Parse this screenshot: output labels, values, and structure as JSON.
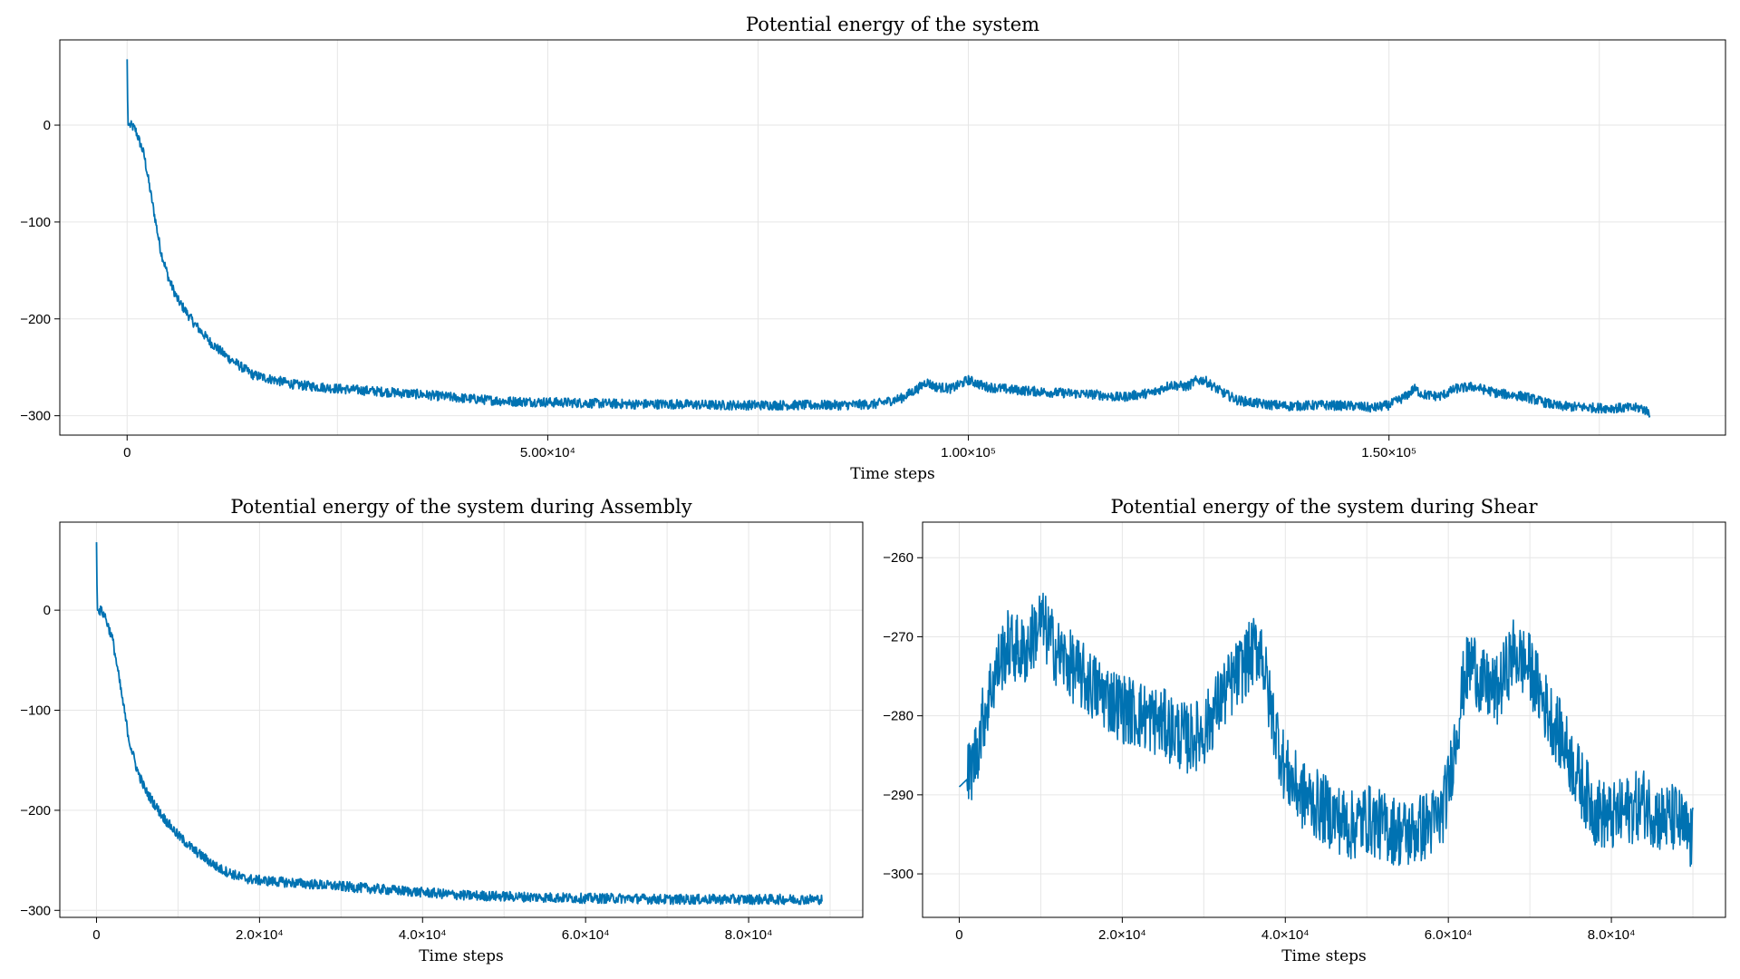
{
  "colors": {
    "series": "#0072b2",
    "grid": "#e6e6e6",
    "axis": "#000000"
  },
  "chart_data": [
    {
      "type": "line",
      "title": "Potential energy of the system",
      "xlabel": "Time steps",
      "ylabel": "",
      "xlim": [
        -8000,
        190000
      ],
      "ylim": [
        -320,
        88
      ],
      "grid": true,
      "xticks": [
        0,
        50000,
        100000,
        150000
      ],
      "xtick_labels": [
        "0",
        "5.00×10⁴",
        "1.00×10⁵",
        "1.50×10⁵"
      ],
      "yticks": [
        0,
        -100,
        -200,
        -300
      ],
      "ytick_labels": [
        "0",
        "−100",
        "−200",
        "−300"
      ],
      "series": [
        {
          "x": [
            0,
            100,
            300,
            600,
            1000,
            2000,
            3000,
            4000,
            5000,
            6000,
            8000,
            10000,
            12000,
            15000,
            20000,
            25000,
            30000,
            35000,
            40000,
            45000,
            50000,
            55000,
            60000,
            65000,
            70000,
            75000,
            80000,
            85000,
            89000,
            92000,
            94000,
            95000,
            96000,
            98000,
            100000,
            102000,
            105000,
            110000,
            115000,
            118000,
            122000,
            124000,
            126000,
            127000,
            128000,
            130000,
            132000,
            135000,
            138000,
            142000,
            146000,
            148000,
            150000,
            152000,
            153000,
            154000,
            156000,
            158000,
            160000,
            163000,
            166000,
            170000,
            175000,
            180000,
            181000
          ],
          "y": [
            68,
            0,
            0,
            -1,
            -5,
            -30,
            -80,
            -130,
            -160,
            -180,
            -205,
            -225,
            -240,
            -258,
            -268,
            -272,
            -275,
            -278,
            -282,
            -285,
            -286,
            -287,
            -288,
            -288,
            -289,
            -289,
            -289,
            -289,
            -288,
            -282,
            -272,
            -265,
            -270,
            -272,
            -263,
            -270,
            -273,
            -276,
            -278,
            -281,
            -276,
            -268,
            -270,
            -264,
            -263,
            -275,
            -284,
            -288,
            -290,
            -289,
            -290,
            -292,
            -289,
            -280,
            -272,
            -278,
            -280,
            -272,
            -270,
            -277,
            -280,
            -290,
            -292,
            -292,
            -297
          ],
          "noise": 5
        }
      ]
    },
    {
      "type": "line",
      "title": "Potential energy of the system during Assembly",
      "xlabel": "Time steps",
      "ylabel": "",
      "xlim": [
        -4500,
        94000
      ],
      "ylim": [
        -307,
        88
      ],
      "grid": true,
      "xticks": [
        0,
        20000,
        40000,
        60000,
        80000
      ],
      "xtick_labels": [
        "0",
        "2.0×10⁴",
        "4.0×10⁴",
        "6.0×10⁴",
        "8.0×10⁴"
      ],
      "yticks": [
        0,
        -100,
        -200,
        -300
      ],
      "ytick_labels": [
        "0",
        "−100",
        "−200",
        "−300"
      ],
      "series": [
        {
          "x": [
            0,
            100,
            300,
            600,
            1000,
            2000,
            3000,
            4000,
            5000,
            6000,
            8000,
            10000,
            12000,
            15000,
            18000,
            20000,
            25000,
            30000,
            35000,
            40000,
            45000,
            50000,
            55000,
            60000,
            65000,
            70000,
            75000,
            80000,
            85000,
            89000
          ],
          "y": [
            68,
            0,
            0,
            -1,
            -5,
            -30,
            -80,
            -130,
            -160,
            -180,
            -205,
            -225,
            -240,
            -258,
            -268,
            -270,
            -273,
            -276,
            -279,
            -282,
            -285,
            -286,
            -287,
            -288,
            -288,
            -289,
            -289,
            -289,
            -289,
            -289
          ],
          "noise": 5
        }
      ]
    },
    {
      "type": "line",
      "title": "Potential energy of the system during Shear",
      "xlabel": "Time steps",
      "ylabel": "",
      "xlim": [
        -4500,
        94000
      ],
      "ylim": [
        -305.5,
        -255.5
      ],
      "grid": true,
      "xticks": [
        0,
        20000,
        40000,
        60000,
        80000
      ],
      "xtick_labels": [
        "0",
        "2.0×10⁴",
        "4.0×10⁴",
        "6.0×10⁴",
        "8.0×10⁴"
      ],
      "yticks": [
        -260,
        -270,
        -280,
        -290,
        -300
      ],
      "ytick_labels": [
        "−260",
        "−270",
        "−280",
        "−290",
        "−300"
      ],
      "series": [
        {
          "x": [
            0,
            1000,
            2000,
            3000,
            4000,
            5000,
            6000,
            8000,
            10000,
            12000,
            14000,
            16000,
            20000,
            25000,
            28000,
            30000,
            32000,
            34000,
            36000,
            37000,
            38000,
            40000,
            42000,
            45000,
            48000,
            50000,
            52000,
            55000,
            57000,
            59000,
            60000,
            61000,
            62000,
            63000,
            64000,
            66000,
            68000,
            70000,
            72000,
            74000,
            76000,
            78000,
            80000,
            82000,
            84000,
            86000,
            88000,
            90000
          ],
          "y": [
            -289,
            -288,
            -285,
            -280,
            -276,
            -273,
            -271,
            -272,
            -268,
            -272,
            -274,
            -276,
            -279,
            -281,
            -283,
            -282,
            -278,
            -275,
            -272,
            -271,
            -278,
            -287,
            -290,
            -292,
            -294,
            -293,
            -294,
            -295,
            -294,
            -293,
            -289,
            -282,
            -275,
            -273,
            -276,
            -277,
            -272,
            -274,
            -279,
            -283,
            -288,
            -292,
            -293,
            -292,
            -291,
            -293,
            -293,
            -296
          ],
          "noise": 4.5
        }
      ]
    }
  ]
}
